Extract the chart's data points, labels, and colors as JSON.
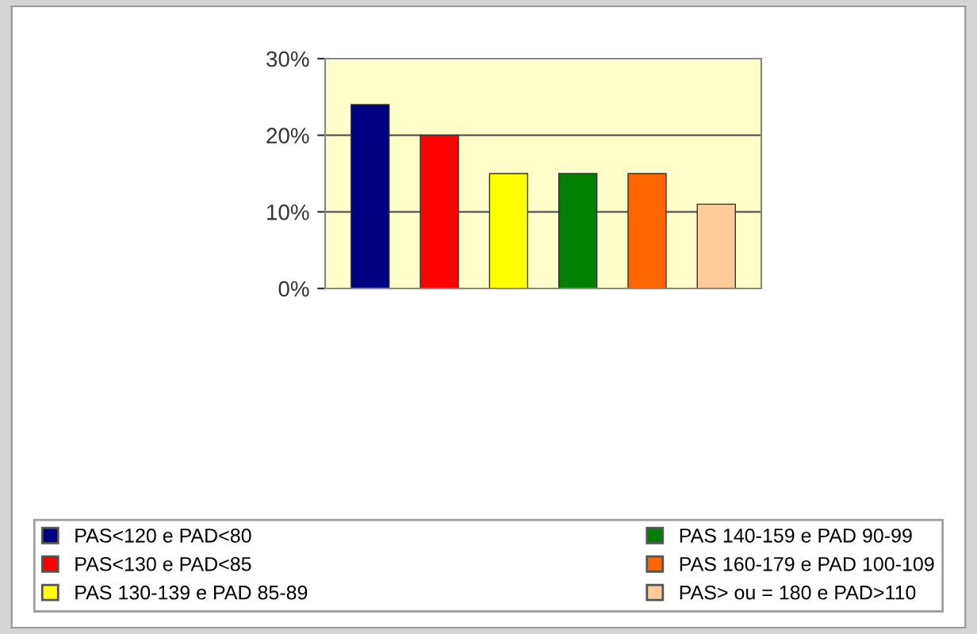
{
  "chart_data": {
    "type": "bar",
    "categories": [
      null
    ],
    "series": [
      {
        "name": "PAS<120 e PAD<80",
        "color": "#000080",
        "values": [
          24
        ]
      },
      {
        "name": "PAS<130 e PAD<85",
        "color": "#ff0000",
        "values": [
          20
        ]
      },
      {
        "name": "PAS 130-139 e PAD 85-89",
        "color": "#ffff00",
        "values": [
          15
        ]
      },
      {
        "name": "PAS 140-159 e PAD 90-99",
        "color": "#008000",
        "values": [
          15
        ]
      },
      {
        "name": "PAS 160-179 e PAD 100-109",
        "color": "#ff6600",
        "values": [
          15
        ]
      },
      {
        "name": "PAS> ou = 180 e PAD>110",
        "color": "#ffcc99",
        "values": [
          11
        ]
      }
    ],
    "ylim": [
      0,
      30
    ],
    "yticks": [
      {
        "value": 0,
        "label": "0%"
      },
      {
        "value": 10,
        "label": "10%"
      },
      {
        "value": 20,
        "label": "20%"
      },
      {
        "value": 30,
        "label": "30%"
      }
    ],
    "grid": "y",
    "legend": "bottom"
  }
}
